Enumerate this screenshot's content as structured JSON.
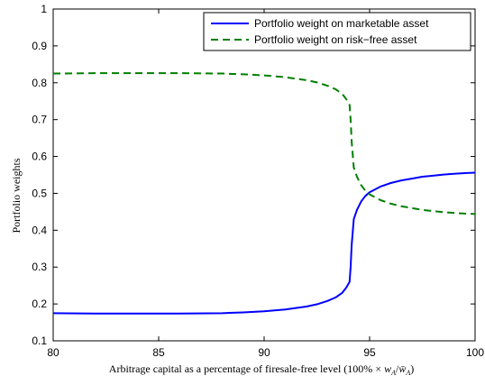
{
  "chart_data": {
    "type": "line",
    "xlabel": "Arbitrage capital as a percentage of firesale-free level (100% × w_A/w̄_A)",
    "ylabel": "Portfolio weights",
    "xlim": [
      80,
      100
    ],
    "ylim": [
      0.1,
      1.0
    ],
    "xticks": [
      "80",
      "85",
      "90",
      "95",
      "100"
    ],
    "yticks": [
      "0.1",
      "0.2",
      "0.3",
      "0.4",
      "0.5",
      "0.6",
      "0.7",
      "0.8",
      "0.9",
      "1"
    ],
    "grid": false,
    "legend_position": "top-right",
    "series": [
      {
        "name": "Portfolio weight on marketable asset",
        "color": "#0000ff",
        "dash": "solid",
        "x": [
          80,
          82,
          84,
          86,
          88,
          89,
          90,
          91,
          92,
          92.5,
          93,
          93.4,
          93.7,
          93.9,
          94.05,
          94.1,
          94.15,
          94.25,
          94.4,
          94.6,
          94.8,
          95,
          95.5,
          96,
          96.5,
          97,
          97.5,
          98,
          98.5,
          99,
          99.5,
          100
        ],
        "y": [
          0.175,
          0.174,
          0.174,
          0.174,
          0.175,
          0.177,
          0.18,
          0.185,
          0.193,
          0.199,
          0.208,
          0.218,
          0.23,
          0.245,
          0.26,
          0.3,
          0.36,
          0.43,
          0.455,
          0.478,
          0.493,
          0.503,
          0.518,
          0.528,
          0.535,
          0.54,
          0.545,
          0.548,
          0.551,
          0.553,
          0.555,
          0.556
        ]
      },
      {
        "name": "Portfolio weight on risk−free asset",
        "color": "#007f00",
        "dash": "dashed",
        "x": [
          80,
          82,
          84,
          86,
          88,
          89,
          90,
          91,
          92,
          92.5,
          93,
          93.4,
          93.7,
          93.9,
          94.05,
          94.1,
          94.15,
          94.25,
          94.4,
          94.6,
          94.8,
          95,
          95.5,
          96,
          96.5,
          97,
          97.5,
          98,
          98.5,
          99,
          99.5,
          100
        ],
        "y": [
          0.825,
          0.826,
          0.826,
          0.826,
          0.825,
          0.823,
          0.82,
          0.815,
          0.807,
          0.801,
          0.792,
          0.782,
          0.77,
          0.755,
          0.74,
          0.7,
          0.64,
          0.57,
          0.545,
          0.522,
          0.507,
          0.497,
          0.482,
          0.472,
          0.465,
          0.46,
          0.455,
          0.452,
          0.449,
          0.447,
          0.445,
          0.444
        ]
      }
    ]
  }
}
